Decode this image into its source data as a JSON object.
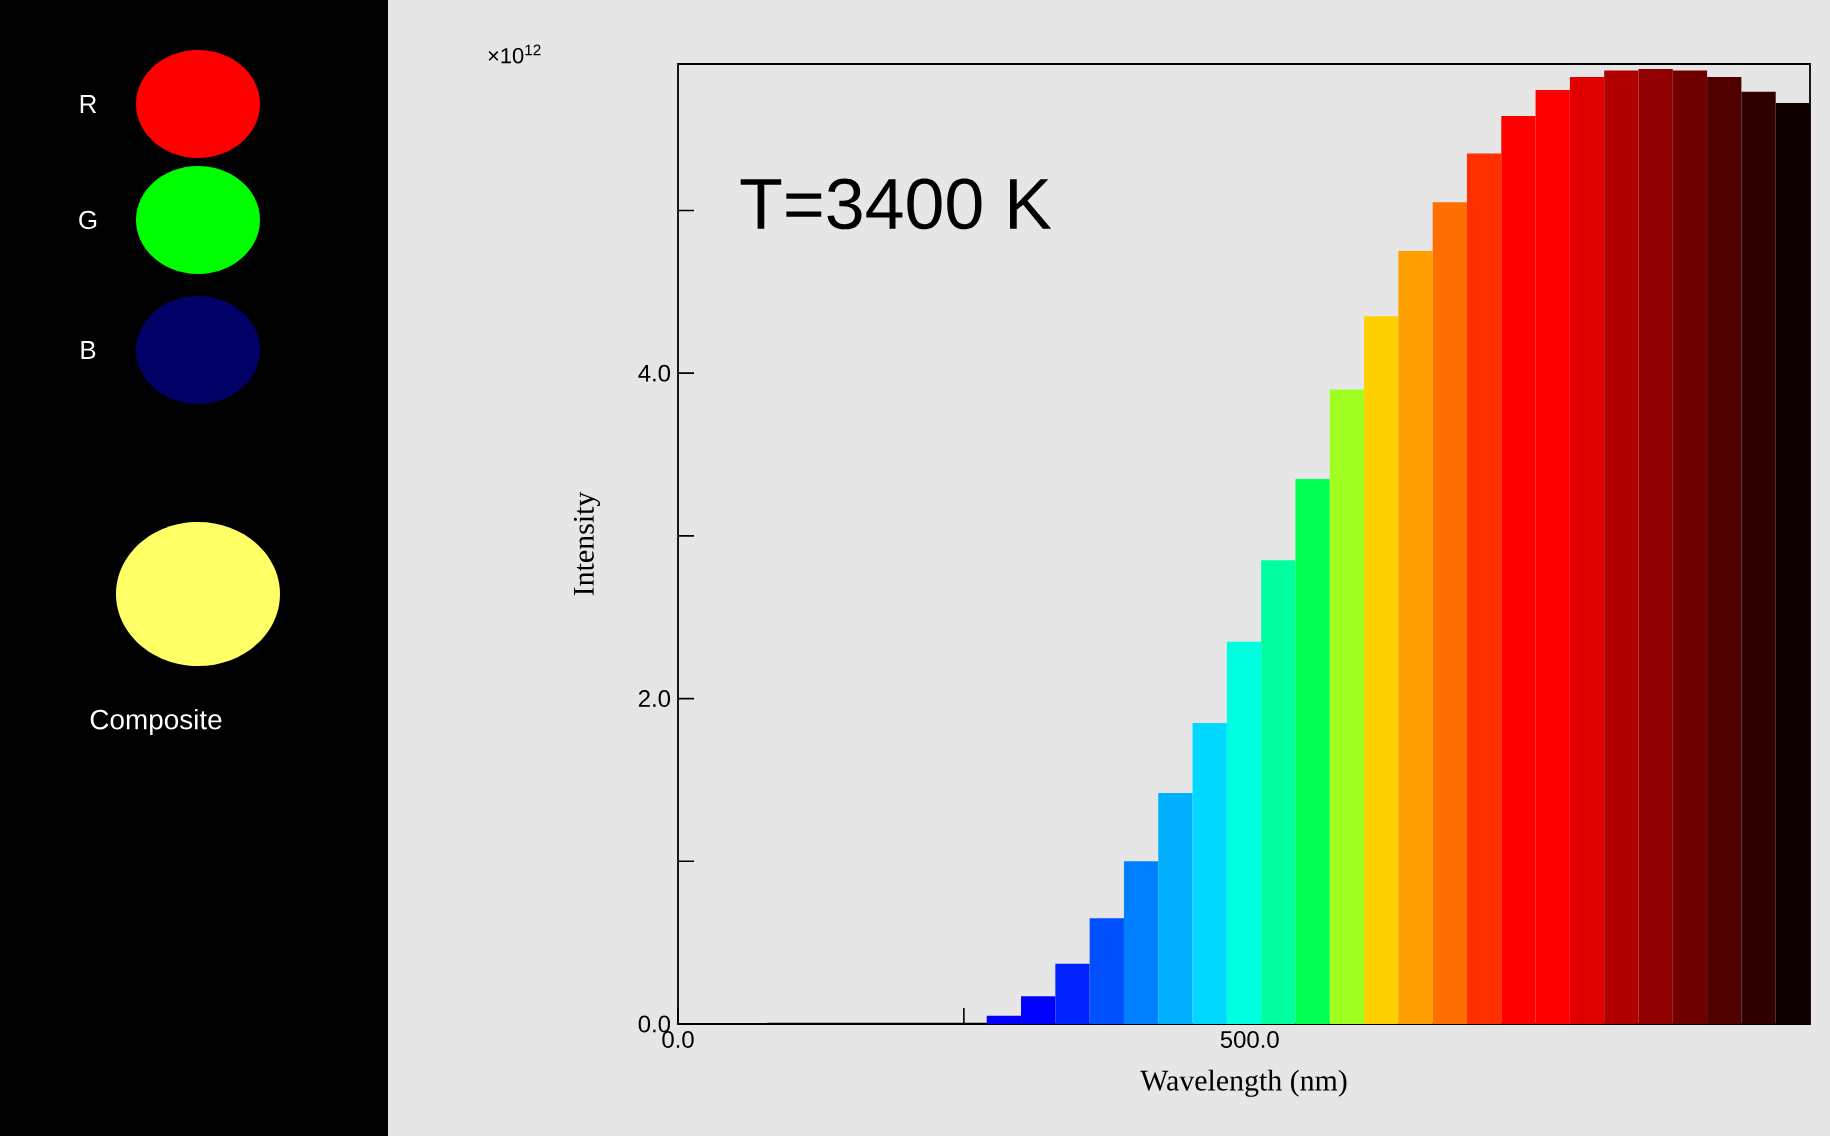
{
  "chart_data": {
    "type": "histogram",
    "xlabel": "Wavelength (nm)",
    "ylabel": "Intensity",
    "annotations": [
      "T=3400 K",
      "×10$^{12}$",
      "R",
      "G",
      "B",
      "Composite"
    ],
    "bins": [
      270,
      300,
      330,
      360,
      390,
      420,
      450,
      480,
      510,
      540,
      570,
      600,
      630,
      660,
      690,
      720,
      750,
      780,
      810,
      840,
      870,
      900,
      930,
      960,
      990
    ],
    "values": [
      0.05,
      0.17,
      0.37,
      0.65,
      1.0,
      1.42,
      1.85,
      2.35,
      2.85,
      3.35,
      3.9,
      4.35,
      4.75,
      5.05,
      5.35,
      5.58,
      5.74,
      5.82,
      5.86,
      5.87,
      5.86,
      5.82,
      5.73,
      5.66
    ],
    "colors": [
      "#0000ff",
      "#0000ff",
      "#0022ff",
      "#0050ff",
      "#0080ff",
      "#00b0ff",
      "#00d8ff",
      "#00ffe0",
      "#00ffa0",
      "#00ff50",
      "#a0ff20",
      "#ffd000",
      "#ffa000",
      "#ff7000",
      "#ff3000",
      "#ff0000",
      "#ff0000",
      "#e00000",
      "#b00000",
      "#900000",
      "#700000",
      "#500000",
      "#300000",
      "#100000"
    ],
    "series": [
      {
        "type": "line",
        "color": "#000000",
        "x": [
          78,
          270
        ],
        "values": [
          0,
          0
        ]
      }
    ],
    "xlim": [
      0,
      990
    ],
    "ylim": [
      0,
      5.9
    ],
    "xticks": [
      {
        "value": 0,
        "label": "0.0"
      },
      {
        "value": 250,
        "label": null
      },
      {
        "value": 500,
        "label": "500.0"
      }
    ],
    "yticks": [
      {
        "value": 0,
        "label": "0.0"
      },
      {
        "value": 1,
        "label": null
      },
      {
        "value": 2,
        "label": "2.0"
      },
      {
        "value": 3,
        "label": null
      },
      {
        "value": 4,
        "label": "4.0"
      },
      {
        "value": 5,
        "label": null
      }
    ]
  }
}
